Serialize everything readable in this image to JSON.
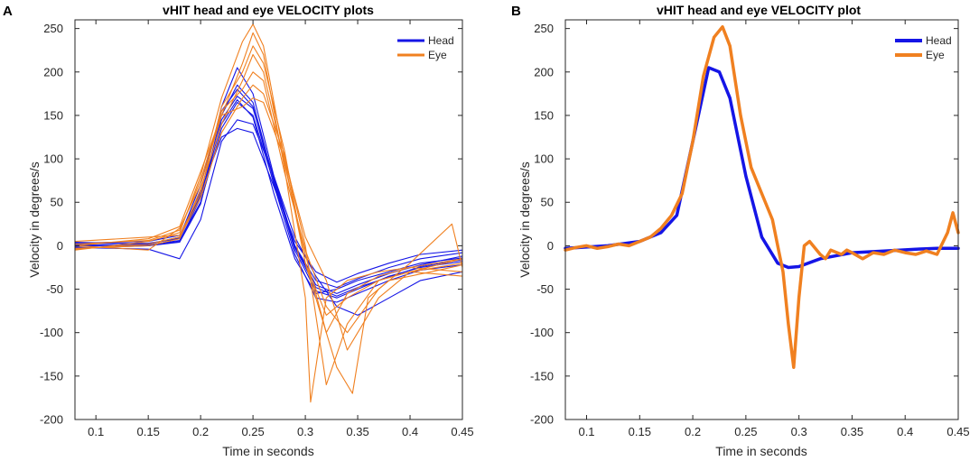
{
  "panel_letters": [
    "A",
    "B"
  ],
  "colors": {
    "head": "#1515e6",
    "eye": "#f08020",
    "axis": "#262626"
  },
  "chart_data": [
    {
      "type": "line",
      "panel": "A",
      "title": "vHIT head and eye VELOCITY plots",
      "xlabel": "Time in seconds",
      "ylabel": "Velocity in degrees/s",
      "xlim": [
        0.08,
        0.45
      ],
      "ylim": [
        -200,
        260
      ],
      "xticks": [
        0.1,
        0.15,
        0.2,
        0.25,
        0.3,
        0.35,
        0.4,
        0.45
      ],
      "xtick_labels": [
        "0.1",
        "0.15",
        "0.2",
        "0.25",
        "0.3",
        "0.35",
        "0.4",
        "0.45"
      ],
      "yticks": [
        -200,
        -150,
        -100,
        -50,
        0,
        50,
        100,
        150,
        200,
        250
      ],
      "ytick_labels": [
        "-200",
        "-150",
        "-100",
        "-50",
        "0",
        "50",
        "100",
        "150",
        "200",
        "250"
      ],
      "legend": [
        "Head",
        "Eye"
      ],
      "legend_position": "top-right",
      "series": [
        {
          "name": "Head",
          "group": "head",
          "x": [
            0.08,
            0.15,
            0.18,
            0.2,
            0.22,
            0.235,
            0.25,
            0.27,
            0.29,
            0.31,
            0.33,
            0.35,
            0.38,
            0.41,
            0.45
          ],
          "y": [
            2,
            3,
            8,
            60,
            160,
            205,
            175,
            80,
            0,
            -45,
            -55,
            -45,
            -32,
            -22,
            -12
          ]
        },
        {
          "name": "Head",
          "group": "head",
          "x": [
            0.08,
            0.15,
            0.18,
            0.2,
            0.22,
            0.235,
            0.25,
            0.27,
            0.29,
            0.31,
            0.33,
            0.35,
            0.38,
            0.41,
            0.45
          ],
          "y": [
            -3,
            0,
            5,
            55,
            150,
            185,
            165,
            75,
            -5,
            -52,
            -60,
            -50,
            -35,
            -25,
            -18
          ]
        },
        {
          "name": "Head",
          "group": "head",
          "x": [
            0.08,
            0.15,
            0.18,
            0.2,
            0.22,
            0.235,
            0.25,
            0.27,
            0.29,
            0.31,
            0.33,
            0.35,
            0.38,
            0.41,
            0.45
          ],
          "y": [
            4,
            2,
            10,
            70,
            155,
            180,
            160,
            70,
            -10,
            -60,
            -65,
            -55,
            -40,
            -28,
            -22
          ]
        },
        {
          "name": "Head",
          "group": "head",
          "x": [
            0.08,
            0.15,
            0.18,
            0.2,
            0.22,
            0.235,
            0.25,
            0.27,
            0.29,
            0.31,
            0.33,
            0.35,
            0.38,
            0.41,
            0.45
          ],
          "y": [
            0,
            1,
            6,
            50,
            135,
            165,
            150,
            72,
            0,
            -40,
            -48,
            -38,
            -25,
            -15,
            -8
          ]
        },
        {
          "name": "Head",
          "group": "head",
          "x": [
            0.08,
            0.15,
            0.18,
            0.2,
            0.22,
            0.235,
            0.25,
            0.27,
            0.29,
            0.31,
            0.33,
            0.35,
            0.38,
            0.41,
            0.45
          ],
          "y": [
            -2,
            -4,
            -15,
            30,
            120,
            145,
            140,
            80,
            10,
            -35,
            -70,
            -80,
            -60,
            -40,
            -30
          ]
        },
        {
          "name": "Head",
          "group": "head",
          "x": [
            0.08,
            0.15,
            0.18,
            0.2,
            0.22,
            0.235,
            0.25,
            0.27,
            0.29,
            0.31,
            0.33,
            0.35,
            0.38,
            0.41,
            0.45
          ],
          "y": [
            3,
            5,
            12,
            62,
            125,
            135,
            130,
            68,
            5,
            -30,
            -42,
            -32,
            -20,
            -10,
            -5
          ]
        },
        {
          "name": "Head",
          "group": "head",
          "x": [
            0.08,
            0.15,
            0.18,
            0.2,
            0.22,
            0.235,
            0.25,
            0.27,
            0.29,
            0.31,
            0.33,
            0.35,
            0.38,
            0.41,
            0.45
          ],
          "y": [
            1,
            0,
            4,
            48,
            145,
            172,
            158,
            78,
            -2,
            -48,
            -58,
            -48,
            -36,
            -24,
            -16
          ]
        },
        {
          "name": "Head",
          "group": "head",
          "x": [
            0.08,
            0.15,
            0.18,
            0.2,
            0.22,
            0.235,
            0.25,
            0.27,
            0.29,
            0.31,
            0.33,
            0.35,
            0.38,
            0.41,
            0.45
          ],
          "y": [
            -1,
            2,
            9,
            58,
            140,
            168,
            148,
            60,
            -15,
            -55,
            -50,
            -40,
            -30,
            -20,
            -14
          ]
        },
        {
          "name": "Eye",
          "group": "eye",
          "x": [
            0.08,
            0.15,
            0.18,
            0.2,
            0.22,
            0.24,
            0.25,
            0.26,
            0.28,
            0.3,
            0.32,
            0.34,
            0.37,
            0.4,
            0.45
          ],
          "y": [
            -5,
            5,
            15,
            80,
            170,
            235,
            255,
            230,
            100,
            -20,
            -80,
            -60,
            -40,
            -30,
            -20
          ]
        },
        {
          "name": "Eye",
          "group": "eye",
          "x": [
            0.08,
            0.15,
            0.18,
            0.2,
            0.22,
            0.24,
            0.25,
            0.26,
            0.28,
            0.3,
            0.305,
            0.32,
            0.34,
            0.37,
            0.4,
            0.45
          ],
          "y": [
            0,
            -5,
            20,
            70,
            150,
            210,
            245,
            220,
            90,
            -60,
            -180,
            -60,
            -40,
            -30,
            -25,
            -15
          ]
        },
        {
          "name": "Eye",
          "group": "eye",
          "x": [
            0.08,
            0.15,
            0.18,
            0.2,
            0.22,
            0.24,
            0.25,
            0.26,
            0.28,
            0.3,
            0.33,
            0.345,
            0.36,
            0.38,
            0.42,
            0.45
          ],
          "y": [
            5,
            10,
            12,
            60,
            160,
            200,
            230,
            210,
            110,
            -20,
            -140,
            -170,
            -60,
            -40,
            -30,
            -22
          ]
        },
        {
          "name": "Eye",
          "group": "eye",
          "x": [
            0.08,
            0.15,
            0.18,
            0.2,
            0.22,
            0.24,
            0.25,
            0.26,
            0.28,
            0.3,
            0.32,
            0.34,
            0.37,
            0.4,
            0.45
          ],
          "y": [
            -3,
            0,
            8,
            65,
            140,
            190,
            220,
            200,
            95,
            -10,
            -100,
            -55,
            -35,
            -25,
            -30
          ]
        },
        {
          "name": "Eye",
          "group": "eye",
          "x": [
            0.08,
            0.15,
            0.18,
            0.2,
            0.22,
            0.24,
            0.25,
            0.26,
            0.28,
            0.3,
            0.32,
            0.34,
            0.37,
            0.4,
            0.44,
            0.45
          ],
          "y": [
            2,
            6,
            18,
            75,
            155,
            180,
            200,
            190,
            85,
            -5,
            -70,
            -100,
            -50,
            -20,
            25,
            -25
          ]
        },
        {
          "name": "Eye",
          "group": "eye",
          "x": [
            0.08,
            0.15,
            0.18,
            0.2,
            0.22,
            0.24,
            0.25,
            0.26,
            0.28,
            0.3,
            0.32,
            0.34,
            0.37,
            0.4,
            0.45
          ],
          "y": [
            -4,
            2,
            10,
            55,
            130,
            170,
            185,
            175,
            105,
            0,
            -160,
            -90,
            -40,
            -30,
            -35
          ]
        },
        {
          "name": "Eye",
          "group": "eye",
          "x": [
            0.08,
            0.15,
            0.18,
            0.2,
            0.22,
            0.24,
            0.25,
            0.26,
            0.28,
            0.3,
            0.32,
            0.34,
            0.37,
            0.4,
            0.45
          ],
          "y": [
            0,
            8,
            22,
            85,
            150,
            160,
            170,
            165,
            100,
            10,
            -40,
            -120,
            -60,
            -30,
            -15
          ]
        }
      ]
    },
    {
      "type": "line",
      "panel": "B",
      "title": "vHIT head and eye VELOCITY plot",
      "xlabel": "Time in seconds",
      "ylabel": "Velocity in degrees/s",
      "xlim": [
        0.08,
        0.45
      ],
      "ylim": [
        -200,
        260
      ],
      "xticks": [
        0.1,
        0.15,
        0.2,
        0.25,
        0.3,
        0.35,
        0.4,
        0.45
      ],
      "xtick_labels": [
        "0.1",
        "0.15",
        "0.2",
        "0.25",
        "0.3",
        "0.35",
        "0.4",
        "0.45"
      ],
      "yticks": [
        -200,
        -150,
        -100,
        -50,
        0,
        50,
        100,
        150,
        200,
        250
      ],
      "ytick_labels": [
        "-200",
        "-150",
        "-100",
        "-50",
        "0",
        "50",
        "100",
        "150",
        "200",
        "250"
      ],
      "legend": [
        "Head",
        "Eye"
      ],
      "legend_position": "top-right",
      "series": [
        {
          "name": "Head",
          "group": "head",
          "x": [
            0.08,
            0.12,
            0.15,
            0.17,
            0.185,
            0.2,
            0.215,
            0.225,
            0.235,
            0.25,
            0.265,
            0.28,
            0.29,
            0.3,
            0.32,
            0.35,
            0.38,
            0.41,
            0.43,
            0.45
          ],
          "y": [
            -3,
            0,
            5,
            15,
            35,
            120,
            205,
            200,
            170,
            80,
            10,
            -20,
            -25,
            -24,
            -15,
            -8,
            -6,
            -4,
            -3,
            -3
          ]
        },
        {
          "name": "Eye",
          "group": "eye",
          "x": [
            0.08,
            0.09,
            0.1,
            0.11,
            0.12,
            0.13,
            0.14,
            0.15,
            0.16,
            0.17,
            0.18,
            0.19,
            0.2,
            0.21,
            0.22,
            0.228,
            0.235,
            0.245,
            0.255,
            0.265,
            0.275,
            0.28,
            0.285,
            0.29,
            0.295,
            0.3,
            0.305,
            0.31,
            0.32,
            0.325,
            0.33,
            0.34,
            0.345,
            0.35,
            0.36,
            0.37,
            0.38,
            0.39,
            0.4,
            0.41,
            0.42,
            0.43,
            0.44,
            0.445,
            0.45
          ],
          "y": [
            -5,
            -2,
            0,
            -3,
            -1,
            2,
            0,
            5,
            10,
            20,
            35,
            60,
            120,
            195,
            240,
            252,
            230,
            150,
            90,
            60,
            30,
            0,
            -30,
            -90,
            -140,
            -60,
            0,
            5,
            -10,
            -15,
            -5,
            -10,
            -5,
            -8,
            -15,
            -8,
            -10,
            -5,
            -8,
            -10,
            -6,
            -10,
            15,
            38,
            15
          ]
        }
      ]
    }
  ]
}
